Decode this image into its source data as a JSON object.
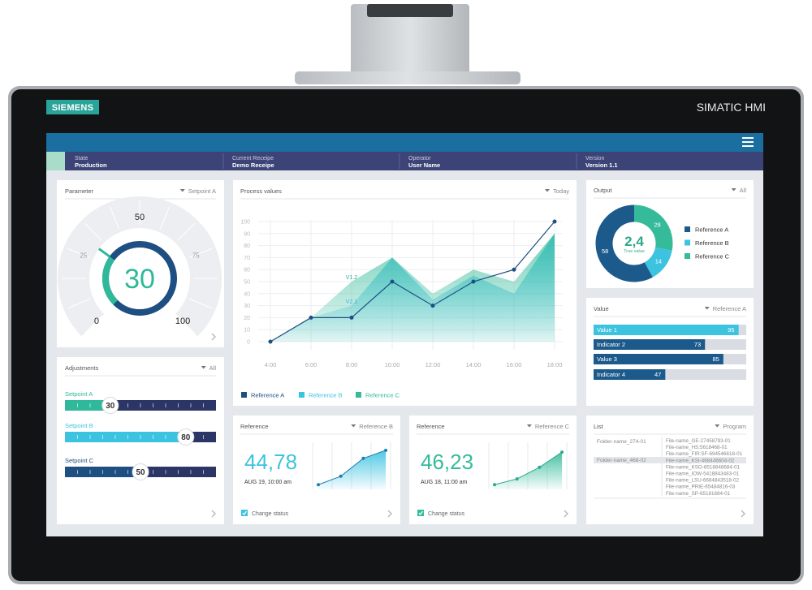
{
  "device": {
    "brand": "SIEMENS",
    "product": "SIMATIC HMI"
  },
  "header": {
    "fields": [
      {
        "label": "State",
        "value": "Production"
      },
      {
        "label": "Current Receipe",
        "value": "Demo Receipe"
      },
      {
        "label": "Operator",
        "value": "User Name"
      },
      {
        "label": "Version",
        "value": "Version 1.1"
      }
    ]
  },
  "parameter": {
    "title": "Parameter",
    "filter": "Setpoint A",
    "value": 30,
    "range": [
      0,
      100
    ],
    "ticks": [
      0,
      25,
      50,
      75,
      100
    ],
    "color": "#2fb89a",
    "ring_color": "#1d4f82"
  },
  "adjustments": {
    "title": "Adjustments",
    "filter": "All",
    "range": [
      0,
      100
    ],
    "sliders": [
      {
        "label": "Setpoint A",
        "value": 30,
        "color": "#2fb89a"
      },
      {
        "label": "Setpoint B",
        "value": 80,
        "color": "#3cc3e0"
      },
      {
        "label": "Setpoint C",
        "value": 50,
        "color": "#1d4f82"
      }
    ]
  },
  "chart_data": {
    "type": "line",
    "title": "Process values",
    "filter": "Today",
    "categories": [
      "4:00",
      "6:00",
      "8:00",
      "10:00",
      "12:00",
      "14:00",
      "16:00",
      "18:00"
    ],
    "series": [
      {
        "name": "Reference A",
        "color": "#1d4f82",
        "kind": "line",
        "values": [
          0,
          20,
          20,
          50,
          30,
          50,
          60,
          100
        ]
      },
      {
        "name": "Reference B",
        "color": "#3cc3e0",
        "kind": "area",
        "values": [
          0,
          20,
          30,
          70,
          35,
          55,
          40,
          90
        ]
      },
      {
        "name": "Reference C",
        "color": "#35bb9a",
        "kind": "area",
        "values": [
          0,
          20,
          50,
          70,
          40,
          60,
          50,
          90
        ]
      }
    ],
    "ylim": [
      0,
      100
    ],
    "yticks": [
      0,
      10,
      20,
      30,
      40,
      50,
      60,
      70,
      80,
      90,
      100
    ],
    "grid": true,
    "annotations": [
      "V1.2",
      "V2.1"
    ]
  },
  "output": {
    "title": "Output",
    "filter": "All",
    "type": "donut",
    "center_value": "2,4",
    "center_label": "True value",
    "slices": [
      {
        "name": "Reference A",
        "value": 58,
        "color": "#1d5a8c"
      },
      {
        "name": "Reference B",
        "value": 14,
        "color": "#3cc3e0"
      },
      {
        "name": "Reference C",
        "value": 28,
        "color": "#35bb9a"
      }
    ]
  },
  "value": {
    "title": "Value",
    "filter": "Reference A",
    "range": [
      0,
      100
    ],
    "bars": [
      {
        "label": "Value 1",
        "value": 95,
        "color": "#3cc3e0"
      },
      {
        "label": "Indicator 2",
        "value": 73,
        "color": "#1d5a8c"
      },
      {
        "label": "Value 3",
        "value": 85,
        "color": "#1d5a8c"
      },
      {
        "label": "Indicator 4",
        "value": 47,
        "color": "#1d5a8c"
      }
    ]
  },
  "references": [
    {
      "title": "Reference",
      "filter": "Reference B",
      "value": "44,78",
      "date": "AUG 19, 10:00 am",
      "status": "Change status",
      "color": "#3cc3e0",
      "ylim": [
        0,
        100
      ],
      "trend": [
        5,
        24,
        64,
        82
      ]
    },
    {
      "title": "Reference",
      "filter": "Reference C",
      "value": "46,23",
      "date": "AUG 18, 11:00 am",
      "status": "Change status",
      "color": "#35bb9a",
      "ylim": [
        0,
        100
      ],
      "trend": [
        5,
        18,
        44,
        78
      ]
    }
  ],
  "list": {
    "title": "List",
    "filter": "Program",
    "folders": [
      "Folder-name_274-01",
      "Folder-name_468-02"
    ],
    "files": [
      "File-name_GE-27458793-01",
      "File-name_HS:5618468-01",
      "File-name_FIR:SF-694546618-01",
      "File-name_KSI-468446604-02",
      "File-name_KSO-6518848684-01",
      "File-name_IOW-5418843483-01",
      "File-name_LSU-6684843518-02",
      "File-name_PRIE-65484816-03",
      "File-name_SP-65181684-01"
    ]
  }
}
